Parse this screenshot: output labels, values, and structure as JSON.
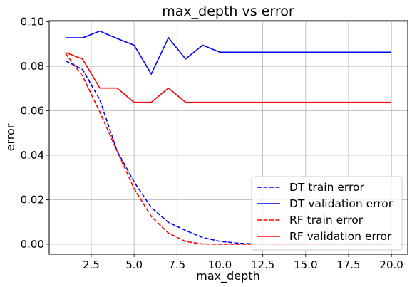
{
  "chart_data": {
    "type": "line",
    "title": "max_depth vs error",
    "xlabel": "max_depth",
    "ylabel": "error",
    "xlim": [
      0.05,
      20.95
    ],
    "ylim": [
      -0.0045,
      0.1005
    ],
    "xticks": [
      2.5,
      5.0,
      7.5,
      10.0,
      12.5,
      15.0,
      17.5,
      20.0
    ],
    "xtick_labels": [
      "2.5",
      "5.0",
      "7.5",
      "10.0",
      "12.5",
      "15.0",
      "17.5",
      "20.0"
    ],
    "yticks": [
      0.0,
      0.02,
      0.04,
      0.06,
      0.08,
      0.1
    ],
    "ytick_labels": [
      "0.00",
      "0.02",
      "0.04",
      "0.06",
      "0.08",
      "0.10"
    ],
    "grid": true,
    "legend_position": "lower-right",
    "x": [
      1,
      2,
      3,
      4,
      5,
      6,
      7,
      8,
      9,
      10,
      11,
      12,
      13,
      14,
      15,
      16,
      17,
      18,
      19,
      20
    ],
    "series": [
      {
        "name": "DT train error",
        "color": "#0000ff",
        "dash": "dashed",
        "values": [
          0.0825,
          0.0785,
          0.065,
          0.042,
          0.028,
          0.0165,
          0.0098,
          0.0062,
          0.003,
          0.0013,
          0.0005,
          0.0001,
          0.0,
          0.0,
          0.0,
          0.0,
          0.0,
          0.0,
          0.0,
          0.0
        ]
      },
      {
        "name": "DT validation error",
        "color": "#0000ff",
        "dash": "solid",
        "values": [
          0.0928,
          0.0928,
          0.0958,
          0.0925,
          0.0895,
          0.0765,
          0.0928,
          0.0833,
          0.0895,
          0.0863,
          0.0863,
          0.0863,
          0.0863,
          0.0863,
          0.0863,
          0.0863,
          0.0863,
          0.0863,
          0.0863,
          0.0863
        ]
      },
      {
        "name": "RF train error",
        "color": "#ff0000",
        "dash": "dashed",
        "values": [
          0.0858,
          0.0755,
          0.0595,
          0.042,
          0.025,
          0.0125,
          0.005,
          0.0012,
          0.0001,
          0.0,
          0.0,
          0.0,
          0.0,
          0.0,
          0.0,
          0.0,
          0.0,
          0.0,
          0.0,
          0.0
        ]
      },
      {
        "name": "RF validation error",
        "color": "#ff0000",
        "dash": "solid",
        "values": [
          0.0862,
          0.0832,
          0.0702,
          0.0702,
          0.0638,
          0.0638,
          0.0702,
          0.0638,
          0.0638,
          0.0638,
          0.0638,
          0.0638,
          0.0638,
          0.0638,
          0.0638,
          0.0638,
          0.0638,
          0.0638,
          0.0638,
          0.0638
        ]
      }
    ]
  }
}
